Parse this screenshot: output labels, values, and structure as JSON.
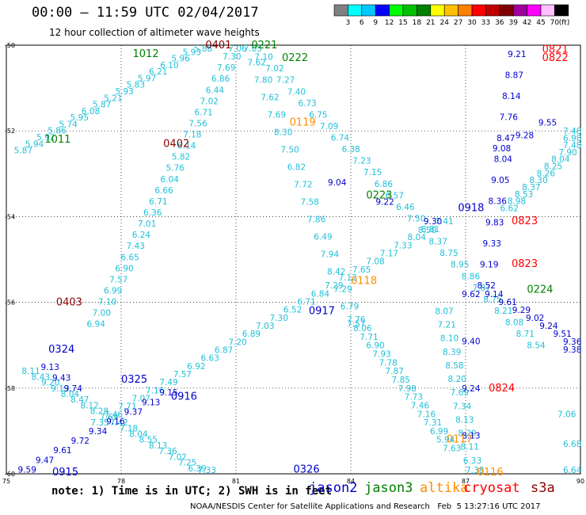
{
  "header": {
    "title": "00:00 — 11:59 UTC 02/04/2017",
    "subtitle": "12 hour collection of altimeter wave heights"
  },
  "colorbar": {
    "unit": "(ft)",
    "bins": [
      {
        "color": "#808080",
        "label": "3"
      },
      {
        "color": "#00ffff",
        "label": "6"
      },
      {
        "color": "#00c8ff",
        "label": "9"
      },
      {
        "color": "#0000ff",
        "label": "12"
      },
      {
        "color": "#00ff00",
        "label": "15"
      },
      {
        "color": "#00c000",
        "label": "18"
      },
      {
        "color": "#008000",
        "label": "21"
      },
      {
        "color": "#ffff00",
        "label": "24"
      },
      {
        "color": "#ffc000",
        "label": "27"
      },
      {
        "color": "#ff8000",
        "label": "30"
      },
      {
        "color": "#ff0000",
        "label": "33"
      },
      {
        "color": "#c00000",
        "label": "36"
      },
      {
        "color": "#800000",
        "label": "39"
      },
      {
        "color": "#a000a0",
        "label": "42"
      },
      {
        "color": "#ff00ff",
        "label": "45"
      },
      {
        "color": "#ffc0ff",
        "label": "70"
      },
      {
        "color": "#000000",
        "label": ""
      }
    ]
  },
  "map": {
    "lon_range": [
      75,
      90
    ],
    "lat_range": [
      -60,
      -50
    ],
    "x_ticks": [
      "75",
      "78",
      "81",
      "84",
      "87",
      "90"
    ],
    "y_ticks": [
      "-50",
      "-52",
      "-54",
      "-56",
      "-58",
      "-60"
    ],
    "colors": {
      "jason2": "#0000cd",
      "jason3": "#008000",
      "altika": "#ff8c00",
      "cryosat": "#ff0000",
      "s3a": "#8b0000",
      "swh_low": "#00b8d8",
      "swh_mid": "#00c8e8"
    },
    "tracks": [
      {
        "start": [
          75.2,
          -52.45
        ],
        "end": [
          79.9,
          -50.0
        ],
        "color": "#20c0d8",
        "values": [
          "5.87",
          "5.94",
          "5.92",
          "5.86",
          "5.74",
          "5.95",
          "6.08",
          "5.87",
          "5.21",
          "5.93",
          "5.83",
          "5.97",
          "6.21",
          "6.10",
          "5.96",
          "5.93",
          "5.88"
        ]
      },
      {
        "start": [
          77.1,
          -56.5
        ],
        "end": [
          80.8,
          -50.0
        ],
        "color": "#20c0d8",
        "values": [
          "6.94",
          "7.00",
          "7.10",
          "6.99",
          "7.57",
          "6.90",
          "6.65",
          "7.43",
          "6.24",
          "7.01",
          "6.36",
          "6.71",
          "6.66",
          "6.04",
          "5.76",
          "5.82",
          "6.14",
          "7.18",
          "7.56",
          "6.71",
          "7.02",
          "6.44",
          "6.86",
          "7.69",
          "7.30",
          "7.06"
        ]
      },
      {
        "start": [
          75.4,
          -57.6
        ],
        "end": [
          80.0,
          -60.0
        ],
        "color": "#20c0d8",
        "values": [
          "8.11",
          "8.43",
          "9.20",
          "9.13",
          "8.04",
          "8.47",
          "8.12",
          "8.28",
          "7.69",
          "7.42",
          "7.18",
          "8.04",
          "8.55",
          "8.13",
          "7.36",
          "7.02",
          "7.25",
          "6.39",
          "7.33"
        ]
      },
      {
        "start": [
          81.2,
          -50.0
        ],
        "end": [
          88.6,
          -57.0
        ],
        "color": "#20c0d8",
        "values": [
          "7.05",
          "7.10",
          "7.02",
          "7.27",
          "7.40",
          "6.73",
          "6.75",
          "7.09",
          "6.74",
          "6.38",
          "7.23",
          "7.15",
          "6.86",
          "6.57",
          "6.46",
          "7.50",
          "8.50",
          "8.37",
          "8.75",
          "8.95",
          "8.86",
          "7.87",
          "8.75",
          "8.21",
          "8.08",
          "8.71",
          "8.54"
        ]
      },
      {
        "start": [
          81.3,
          -50.4
        ],
        "end": [
          83.9,
          -56.5
        ],
        "color": "#20c0d8",
        "values": [
          "7.62",
          "7.80",
          "7.62",
          "7.69",
          "8.30",
          "7.50",
          "6.82",
          "7.72",
          "7.58",
          "7.86",
          "6.49",
          "7.94",
          "8.42",
          "7.29",
          "6.79",
          "7.57"
        ]
      },
      {
        "start": [
          83.9,
          -56.4
        ],
        "end": [
          86.4,
          -59.4
        ],
        "color": "#20c0d8",
        "values": [
          "7.76",
          "8.06",
          "7.71",
          "6.90",
          "7.93",
          "7.78",
          "7.87",
          "7.85",
          "7.98",
          "7.73",
          "7.46",
          "7.16",
          "7.31",
          "6.99",
          "5.94",
          "7.63"
        ]
      },
      {
        "start": [
          77.2,
          -58.8
        ],
        "end": [
          86.2,
          -54.1
        ],
        "color": "#20c0d8",
        "values": [
          "7.35",
          "7.46",
          "7.71",
          "7.07",
          "7.16",
          "7.49",
          "7.57",
          "6.92",
          "6.63",
          "6.87",
          "7.20",
          "6.89",
          "7.03",
          "7.30",
          "6.52",
          "6.71",
          "6.84",
          "7.29",
          "7.12",
          "7.65",
          "7.08",
          "7.17",
          "7.33",
          "8.04",
          "8.81",
          "7.41"
        ]
      },
      {
        "start": [
          86.2,
          -56.2
        ],
        "end": [
          87.0,
          -60.0
        ],
        "color": "#20c0d8",
        "values": [
          "8.07",
          "7.21",
          "8.10",
          "8.39",
          "8.58",
          "8.20",
          "7.69",
          "7.34",
          "8.13",
          "8.29",
          "8.11",
          "6.33",
          "7.38"
        ]
      },
      {
        "start": [
          87.9,
          -53.8
        ],
        "end": [
          90.0,
          -52.0
        ],
        "color": "#20c0d8",
        "values": [
          "6.62",
          "8.98",
          "8.53",
          "8.37",
          "8.30",
          "8.26",
          "8.25",
          "8.04",
          "7.90",
          "7.48",
          "6.98",
          "7.48"
        ]
      },
      {
        "start": [
          89.4,
          -58.6
        ],
        "end": [
          90.0,
          -60.0
        ],
        "color": "#20c0d8",
        "values": [
          "7.06",
          "6.68",
          "6.64"
        ]
      },
      {
        "start": [
          88.1,
          -50.2
        ],
        "end": [
          87.3,
          -55.6
        ],
        "color": "#0000cd",
        "values": [
          "9.21",
          "8.87",
          "8.14",
          "7.76",
          "8.47",
          "8.04",
          "9.05",
          "8.36",
          "9.83",
          "9.33",
          "9.19",
          "8.52"
        ]
      },
      {
        "start": [
          87.5,
          -55.8
        ],
        "end": [
          90.0,
          -57.1
        ],
        "color": "#0000cd",
        "values": [
          "9.14",
          "9.61",
          "9.29",
          "9.02",
          "9.24",
          "9.51",
          "9.36",
          "9.38"
        ]
      },
      {
        "start": [
          75.3,
          -59.9
        ],
        "end": [
          79.0,
          -58.1
        ],
        "color": "#0000cd",
        "values": [
          "9.59",
          "9.47",
          "9.61",
          "9.72",
          "9.34",
          "9.16",
          "9.37",
          "9.13",
          "9.15"
        ]
      },
      {
        "start": [
          86.9,
          -55.8
        ],
        "end": [
          86.9,
          -59.1
        ],
        "color": "#0000cd",
        "values": [
          "9.62",
          "9.40",
          "9.24",
          "8.13"
        ]
      },
      {
        "start": [
          75.9,
          -57.5
        ],
        "end": [
          76.5,
          -58.0
        ],
        "color": "#0000cd",
        "values": [
          "9.13",
          "9.43",
          "9.74"
        ]
      },
      {
        "start": [
          83.4,
          -53.2
        ],
        "end": [
          85.9,
          -54.1
        ],
        "color": "#0000cd",
        "values": [
          "9.04",
          "9.22",
          "9.30"
        ]
      },
      {
        "start": [
          87.7,
          -52.4
        ],
        "end": [
          88.9,
          -51.8
        ],
        "color": "#0000cd",
        "values": [
          "9.08",
          "9.28",
          "9.55"
        ]
      }
    ],
    "labels": [
      {
        "text": "0401",
        "pos": [
          80.2,
          -50.0
        ],
        "color": "#8b0000"
      },
      {
        "text": "0402",
        "pos": [
          79.1,
          -52.3
        ],
        "color": "#8b0000"
      },
      {
        "text": "0403",
        "pos": [
          76.3,
          -56.0
        ],
        "color": "#8b0000"
      },
      {
        "text": "0221",
        "pos": [
          81.4,
          -50.0
        ],
        "color": "#008000"
      },
      {
        "text": "0222",
        "pos": [
          82.2,
          -50.3
        ],
        "color": "#008000"
      },
      {
        "text": "0223",
        "pos": [
          84.4,
          -53.5
        ],
        "color": "#008000"
      },
      {
        "text": "0224",
        "pos": [
          88.6,
          -55.7
        ],
        "color": "#008000"
      },
      {
        "text": "1012",
        "pos": [
          78.3,
          -50.2
        ],
        "color": "#008000"
      },
      {
        "text": "1011",
        "pos": [
          76.0,
          -52.2
        ],
        "color": "#008000"
      },
      {
        "text": "0119",
        "pos": [
          82.4,
          -51.8
        ],
        "color": "#ff8c00"
      },
      {
        "text": "0118",
        "pos": [
          84.0,
          -55.5
        ],
        "color": "#ff8c00"
      },
      {
        "text": "0117",
        "pos": [
          86.5,
          -59.2
        ],
        "color": "#ff8c00"
      },
      {
        "text": "0116",
        "pos": [
          87.3,
          -60.0
        ],
        "color": "#ff8c00"
      },
      {
        "text": "0821",
        "pos": [
          89.0,
          -50.1
        ],
        "color": "#ff0000"
      },
      {
        "text": "0822",
        "pos": [
          89.0,
          -50.3
        ],
        "color": "#ff0000"
      },
      {
        "text": "0823",
        "pos": [
          88.2,
          -54.1
        ],
        "color": "#ff0000"
      },
      {
        "text": "0823",
        "pos": [
          88.2,
          -55.1
        ],
        "color": "#ff0000"
      },
      {
        "text": "0824",
        "pos": [
          87.6,
          -58.0
        ],
        "color": "#ff0000"
      },
      {
        "text": "0917",
        "pos": [
          82.9,
          -56.2
        ],
        "color": "#0000cd"
      },
      {
        "text": "0918",
        "pos": [
          86.8,
          -53.8
        ],
        "color": "#0000cd"
      },
      {
        "text": "0916",
        "pos": [
          79.3,
          -58.2
        ],
        "color": "#0000cd"
      },
      {
        "text": "0915",
        "pos": [
          76.2,
          -60.0
        ],
        "color": "#0000cd"
      },
      {
        "text": "0325",
        "pos": [
          78.0,
          -57.8
        ],
        "color": "#0000cd"
      },
      {
        "text": "0324",
        "pos": [
          76.1,
          -57.1
        ],
        "color": "#0000cd"
      },
      {
        "text": "0326",
        "pos": [
          82.5,
          -59.9
        ],
        "color": "#0000cd"
      }
    ]
  },
  "footer": {
    "note": "note: 1) Time is in UTC; 2) SWH is in feet",
    "satellites": [
      {
        "name": "jason2",
        "color": "#0000cd"
      },
      {
        "name": "jason3",
        "color": "#008000"
      },
      {
        "name": "altika",
        "color": "#ff8c00"
      },
      {
        "name": "cryosat",
        "color": "#ff0000"
      },
      {
        "name": "s3a",
        "color": "#8b0000"
      }
    ],
    "credit": "NOAA/NESDIS Center for Satellite Applications and Research   Feb  5 13:27:16 UTC 2017"
  }
}
